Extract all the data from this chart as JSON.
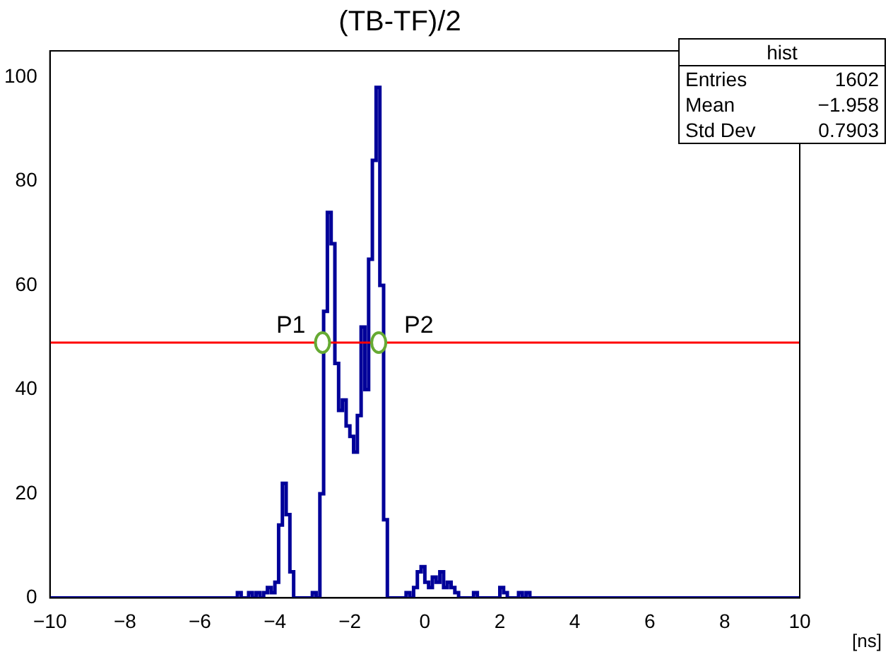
{
  "chart_data": {
    "type": "histogram",
    "title": "(TB-TF)/2",
    "xlabel": "[ns]",
    "bins": [
      -10,
      -5,
      -4.9,
      -4.8,
      -4.7,
      -4.6,
      -4.5,
      -4.4,
      -4.3,
      -4.2,
      -4.1,
      -4,
      -3.9,
      -3.8,
      -3.7,
      -3.6,
      -3.5,
      -3.4,
      -3.3,
      -3.2,
      -3.1,
      -3,
      -2.9,
      -2.8,
      -2.7,
      -2.6,
      -2.5,
      -2.4,
      -2.3,
      -2.2,
      -2.1,
      -2,
      -1.9,
      -1.8,
      -1.7,
      -1.6,
      -1.5,
      -1.4,
      -1.3,
      -1.2,
      -1.1,
      -1,
      -0.9,
      -0.8,
      -0.7,
      -0.6,
      -0.5,
      -0.4,
      -0.3,
      -0.2,
      -0.1,
      0,
      0.1,
      0.2,
      0.3,
      0.4,
      0.5,
      0.6,
      0.7,
      0.8,
      0.9,
      1,
      1.1,
      1.2,
      1.3,
      1.4,
      1.5,
      1.6,
      1.7,
      1.8,
      1.9,
      2,
      2.1,
      2.2,
      2.3,
      2.4,
      2.5,
      2.6,
      2.7,
      2.8,
      10
    ],
    "values": [
      0,
      1,
      0,
      0,
      1,
      0,
      1,
      0,
      1,
      2,
      1,
      3,
      14,
      22,
      16,
      5,
      0,
      0,
      0,
      0,
      0,
      1,
      0,
      20,
      55,
      74,
      68,
      45,
      36,
      38,
      33,
      31,
      28,
      35,
      52,
      40,
      65,
      84,
      98,
      60,
      15,
      0,
      0,
      0,
      0,
      0,
      1,
      0,
      2,
      5,
      6,
      3,
      2,
      4,
      3,
      5,
      2,
      3,
      2,
      1,
      0,
      0,
      0,
      0,
      1,
      0,
      0,
      0,
      0,
      0,
      0,
      2,
      1,
      0,
      0,
      0,
      1,
      0,
      1,
      0
    ],
    "color": "#000099",
    "xlim": [
      -10,
      10
    ],
    "xticks": [
      -10,
      -8,
      -6,
      -4,
      -2,
      0,
      2,
      4,
      6,
      8,
      10
    ],
    "ylim": [
      0,
      105
    ],
    "yticks": [
      0,
      20,
      40,
      60,
      80,
      100
    ],
    "ref_lines": [
      {
        "axis": "y",
        "value": 49,
        "color": "#ff0000"
      }
    ],
    "annotations": [
      {
        "text": "P1",
        "x": -2.73,
        "y": 49
      },
      {
        "text": "P2",
        "x": -1.23,
        "y": 49
      },
      "hist",
      "Entries",
      "1602",
      "Mean",
      "−1.958",
      "Std Dev",
      "0.7903"
    ]
  }
}
